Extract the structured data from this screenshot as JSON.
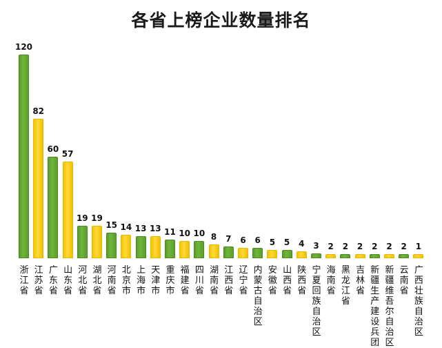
{
  "title": "各省上榜企业数量排名",
  "chart_data": {
    "type": "bar",
    "title": "各省上榜企业数量排名",
    "xlabel": "",
    "ylabel": "",
    "grid": false,
    "legend": "none",
    "ylim": [
      0,
      120
    ],
    "categories": [
      "浙江省",
      "江苏省",
      "广东省",
      "山东省",
      "河北省",
      "湖北省",
      "河南省",
      "北京市",
      "上海市",
      "天津市",
      "重庆市",
      "福建省",
      "四川省",
      "湖南省",
      "江西省",
      "辽宁省",
      "内蒙古自治区",
      "安徽省",
      "山西省",
      "陕西省",
      "宁夏回族自治区",
      "海南省",
      "黑龙江省",
      "吉林省",
      "新疆生产建设兵团",
      "新疆维吾尔自治区",
      "云南省",
      "广西壮族自治区"
    ],
    "values": [
      120,
      82,
      60,
      57,
      19,
      19,
      15,
      14,
      13,
      13,
      11,
      10,
      10,
      8,
      7,
      6,
      6,
      5,
      5,
      4,
      3,
      2,
      2,
      2,
      2,
      2,
      2,
      1
    ],
    "bar_colors": [
      "green",
      "yellow",
      "green",
      "yellow",
      "green",
      "yellow",
      "green",
      "yellow",
      "green",
      "yellow",
      "green",
      "yellow",
      "green",
      "yellow",
      "green",
      "yellow",
      "green",
      "yellow",
      "green",
      "yellow",
      "green",
      "yellow",
      "green",
      "yellow",
      "green",
      "yellow",
      "green",
      "yellow"
    ]
  },
  "colors": {
    "green": "#6aae35",
    "yellow": "#ffd020",
    "text": "#111111"
  }
}
